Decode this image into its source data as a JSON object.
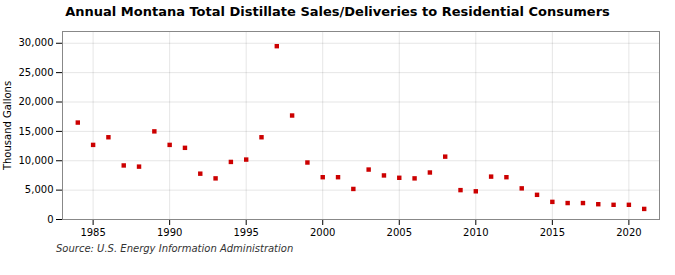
{
  "chart_data": {
    "type": "scatter",
    "title": "Annual Montana Total Distillate Sales/Deliveries to Residential Consumers",
    "ylabel": "Thousand Gallons",
    "annotations": [
      "Source: U.S. Energy Information Administration"
    ],
    "x": [
      1984,
      1985,
      1986,
      1987,
      1988,
      1989,
      1990,
      1991,
      1992,
      1993,
      1994,
      1995,
      1996,
      1997,
      1998,
      1999,
      2000,
      2001,
      2002,
      2003,
      2004,
      2005,
      2006,
      2007,
      2008,
      2009,
      2010,
      2011,
      2012,
      2013,
      2014,
      2015,
      2016,
      2017,
      2018,
      2019,
      2020,
      2021
    ],
    "values": [
      16500,
      12700,
      14000,
      9200,
      9000,
      15000,
      12700,
      12200,
      7800,
      7000,
      9800,
      10200,
      14000,
      29500,
      17700,
      9700,
      7200,
      7200,
      5200,
      8500,
      7500,
      7100,
      7000,
      8000,
      10700,
      5000,
      4800,
      7300,
      7200,
      5300,
      4200,
      3000,
      2800,
      2800,
      2600,
      2500,
      2500,
      1800
    ],
    "color": "#cc0000",
    "marker": "square",
    "xlim": [
      1983,
      2022
    ],
    "xticks": [
      1985,
      1990,
      1995,
      2000,
      2005,
      2010,
      2015,
      2020
    ],
    "ylim": [
      0,
      32000
    ],
    "yticks": [
      0,
      {
        "value": 5000,
        "label": "5,000"
      },
      {
        "value": 10000,
        "label": "10,000"
      },
      {
        "value": 15000,
        "label": "15,000"
      },
      {
        "value": 20000,
        "label": "20,000"
      },
      {
        "value": 25000,
        "label": "25,000"
      },
      {
        "value": 30000,
        "label": "30,000"
      }
    ],
    "grid": true
  }
}
